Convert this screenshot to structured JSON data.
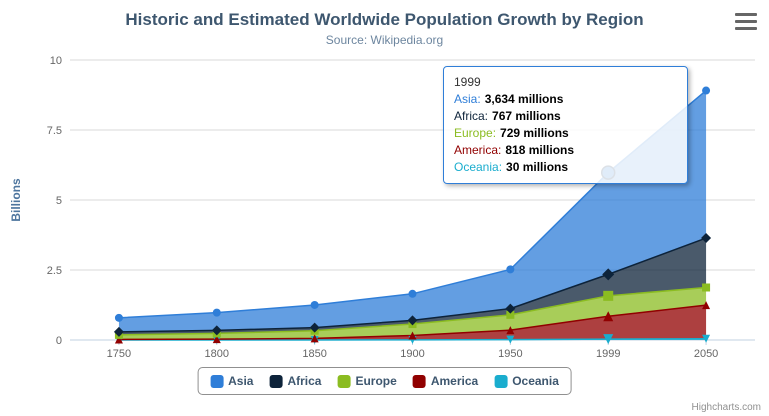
{
  "chart_data": {
    "type": "area",
    "stacked": true,
    "title": "Historic and Estimated Worldwide Population Growth by Region",
    "subtitle": "Source: Wikipedia.org",
    "ylabel": "Billions",
    "xlabel": "",
    "ylim": [
      0,
      10
    ],
    "yticks": [
      0,
      2.5,
      5,
      7.5,
      10
    ],
    "categories": [
      "1750",
      "1800",
      "1850",
      "1900",
      "1950",
      "1999",
      "2050"
    ],
    "values_unit": "millions",
    "legend_position": "bottom",
    "grid": "horizontal",
    "hover_index": 5,
    "series": [
      {
        "name": "Asia",
        "color": "#2f7ed8",
        "marker": "circle",
        "values": [
          502,
          635,
          809,
          947,
          1402,
          3634,
          5268
        ]
      },
      {
        "name": "Africa",
        "color": "#0d233a",
        "marker": "diamond",
        "values": [
          106,
          107,
          111,
          133,
          221,
          767,
          1766
        ]
      },
      {
        "name": "Europe",
        "color": "#8bbc21",
        "marker": "square",
        "values": [
          163,
          203,
          276,
          408,
          547,
          729,
          628
        ]
      },
      {
        "name": "America",
        "color": "#910000",
        "marker": "triangle",
        "values": [
          18,
          31,
          54,
          156,
          339,
          818,
          1201
        ]
      },
      {
        "name": "Oceania",
        "color": "#1aadce",
        "marker": "triangle-down",
        "values": [
          2,
          2,
          2,
          6,
          13,
          30,
          46
        ]
      }
    ]
  },
  "tooltip": {
    "header": "1999",
    "rows": [
      {
        "label": "Asia:",
        "value": "3,634 millions"
      },
      {
        "label": "Africa:",
        "value": "767 millions"
      },
      {
        "label": "Europe:",
        "value": "729 millions"
      },
      {
        "label": "America:",
        "value": "818 millions"
      },
      {
        "label": "Oceania:",
        "value": "30 millions"
      }
    ]
  },
  "legend": {
    "items": [
      "Asia",
      "Africa",
      "Europe",
      "America",
      "Oceania"
    ]
  },
  "toolbar": {
    "menu_icon": "hamburger"
  },
  "credits": "Highcharts.com"
}
